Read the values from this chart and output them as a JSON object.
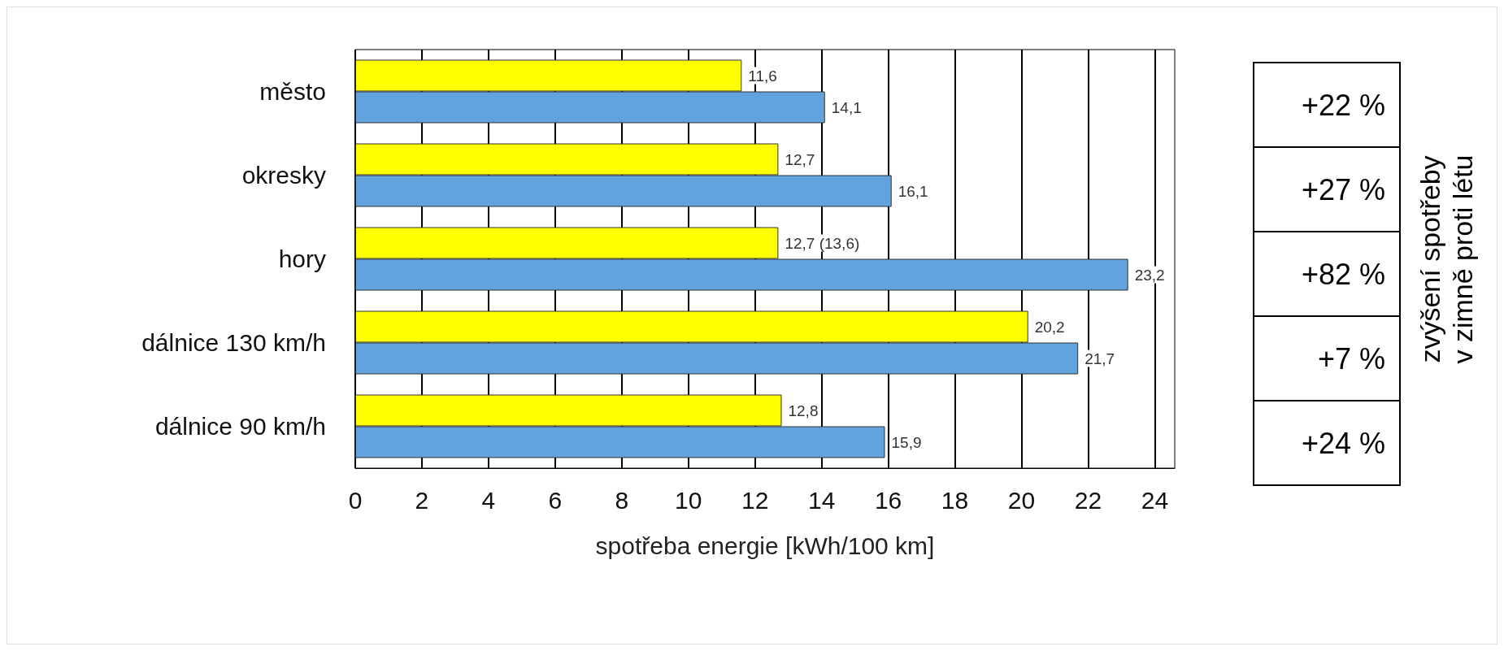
{
  "chart_data": {
    "type": "bar",
    "orientation": "horizontal",
    "xlabel": "spotřeba energie [kWh/100 km]",
    "categories": [
      "město",
      "okresky",
      "hory",
      "dálnice 130 km/h",
      "dálnice 90 km/h"
    ],
    "series": [
      {
        "color": "#ffff00",
        "values": [
          11.6,
          12.7,
          12.7,
          20.2,
          12.8
        ],
        "value_labels": [
          "11,6",
          "12,7",
          "12,7 (13,6)",
          "20,2",
          "12,8"
        ]
      },
      {
        "color": "#62a3dd",
        "values": [
          14.1,
          16.1,
          23.2,
          21.7,
          15.9
        ],
        "value_labels": [
          "14,1",
          "16,1",
          "23,2",
          "21,7",
          "15,9"
        ]
      }
    ],
    "xlim": [
      0,
      24.6
    ],
    "xticks": [
      0,
      2,
      4,
      6,
      8,
      10,
      12,
      14,
      16,
      18,
      20,
      22,
      24
    ],
    "grid": "x",
    "annotations": [
      "+22 %",
      "+27 %",
      "+82 %",
      "+7 %",
      "+24 %",
      "zvýšení spotřeby\nv zimně proti létu"
    ]
  }
}
